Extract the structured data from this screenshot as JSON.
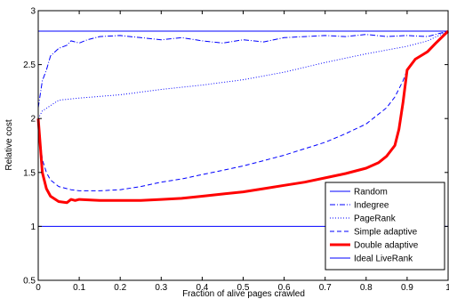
{
  "chart_data": {
    "type": "line",
    "title": "",
    "xlabel": "Fraction of alive pages crawled",
    "ylabel": "Relative cost",
    "xlim": [
      0,
      1
    ],
    "ylim": [
      0.5,
      3
    ],
    "xticks": [
      "0",
      "0.1",
      "0.2",
      "0.3",
      "0.4",
      "0.5",
      "0.6",
      "0.7",
      "0.8",
      "0.9",
      "1"
    ],
    "yticks": [
      "0.5",
      "1",
      "1.5",
      "2",
      "2.5",
      "3"
    ],
    "grid": false,
    "legend_position": "bottom-right",
    "series": [
      {
        "name": "Random",
        "color": "#0000ff",
        "style": "solid",
        "width": 1,
        "x": [
          0,
          1
        ],
        "y": [
          2.81,
          2.81
        ]
      },
      {
        "name": "Indegree",
        "color": "#0000ff",
        "style": "dashdot",
        "width": 1,
        "x": [
          0,
          0.01,
          0.02,
          0.03,
          0.05,
          0.07,
          0.08,
          0.1,
          0.12,
          0.15,
          0.2,
          0.25,
          0.3,
          0.35,
          0.4,
          0.45,
          0.5,
          0.55,
          0.6,
          0.65,
          0.7,
          0.75,
          0.8,
          0.85,
          0.9,
          0.95,
          1
        ],
        "y": [
          2.1,
          2.35,
          2.45,
          2.58,
          2.65,
          2.68,
          2.72,
          2.7,
          2.73,
          2.76,
          2.77,
          2.75,
          2.73,
          2.75,
          2.72,
          2.7,
          2.73,
          2.71,
          2.75,
          2.76,
          2.77,
          2.76,
          2.78,
          2.76,
          2.77,
          2.76,
          2.81
        ]
      },
      {
        "name": "PageRank",
        "color": "#0000ff",
        "style": "dotted",
        "width": 1,
        "x": [
          0,
          0.01,
          0.03,
          0.05,
          0.1,
          0.2,
          0.3,
          0.4,
          0.5,
          0.6,
          0.7,
          0.8,
          0.9,
          0.95,
          1
        ],
        "y": [
          2.0,
          2.07,
          2.12,
          2.17,
          2.19,
          2.22,
          2.27,
          2.31,
          2.36,
          2.43,
          2.52,
          2.6,
          2.67,
          2.72,
          2.81
        ]
      },
      {
        "name": "Simple adaptive",
        "color": "#0000ff",
        "style": "dashed",
        "width": 1,
        "x": [
          0,
          0.005,
          0.01,
          0.02,
          0.03,
          0.05,
          0.08,
          0.1,
          0.15,
          0.2,
          0.25,
          0.3,
          0.35,
          0.4,
          0.45,
          0.5,
          0.55,
          0.6,
          0.65,
          0.7,
          0.75,
          0.8,
          0.85,
          0.87,
          0.89,
          0.9,
          0.92,
          0.95,
          1
        ],
        "y": [
          2.0,
          1.8,
          1.62,
          1.5,
          1.43,
          1.37,
          1.34,
          1.33,
          1.33,
          1.34,
          1.37,
          1.41,
          1.44,
          1.48,
          1.52,
          1.56,
          1.61,
          1.66,
          1.72,
          1.78,
          1.86,
          1.95,
          2.1,
          2.2,
          2.35,
          2.45,
          2.55,
          2.63,
          2.81
        ]
      },
      {
        "name": "Double adaptive",
        "color": "#ff0000",
        "style": "solid",
        "width": 3,
        "x": [
          0,
          0.005,
          0.01,
          0.02,
          0.03,
          0.05,
          0.07,
          0.08,
          0.09,
          0.1,
          0.15,
          0.2,
          0.25,
          0.3,
          0.35,
          0.4,
          0.45,
          0.5,
          0.55,
          0.6,
          0.65,
          0.7,
          0.75,
          0.8,
          0.83,
          0.85,
          0.87,
          0.88,
          0.89,
          0.9,
          0.92,
          0.95,
          0.97,
          1
        ],
        "y": [
          2.0,
          1.75,
          1.5,
          1.35,
          1.28,
          1.23,
          1.22,
          1.25,
          1.24,
          1.25,
          1.24,
          1.24,
          1.24,
          1.25,
          1.26,
          1.28,
          1.3,
          1.32,
          1.35,
          1.38,
          1.41,
          1.45,
          1.49,
          1.54,
          1.59,
          1.65,
          1.75,
          1.9,
          2.15,
          2.45,
          2.55,
          2.62,
          2.7,
          2.81
        ]
      },
      {
        "name": "Ideal LiveRank",
        "color": "#0000ff",
        "style": "solid",
        "width": 1,
        "x": [
          0,
          1
        ],
        "y": [
          1,
          1
        ]
      }
    ]
  }
}
